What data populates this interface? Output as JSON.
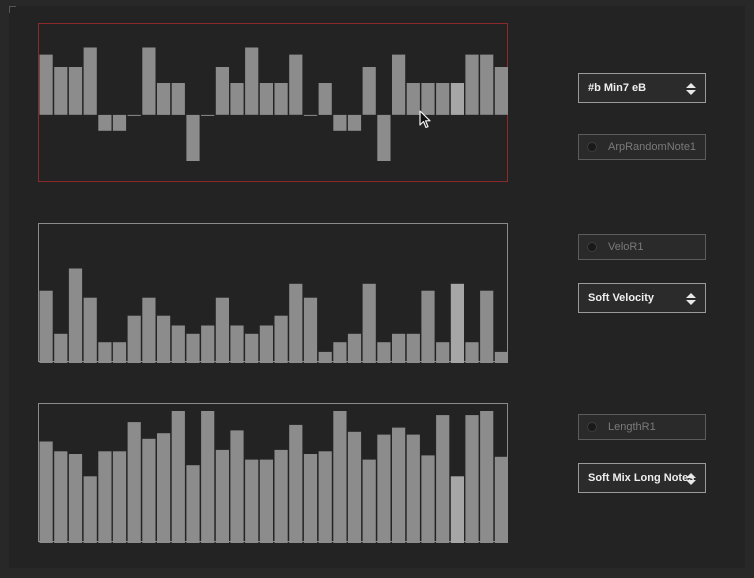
{
  "colors": {
    "background": "#282828",
    "panel": "#232323",
    "bar": "#8c8c8c",
    "bar_highlight": "#a6a6a6",
    "selected_border": "#8b2a2a",
    "border": "#8a8a8a"
  },
  "pitch_graph": {
    "range": [
      -3,
      4
    ],
    "highlight_index": 28,
    "values": [
      3.4,
      2.7,
      2.7,
      3.8,
      -0.9,
      -0.9,
      0,
      3.8,
      1.8,
      1.8,
      -2.6,
      0,
      2.7,
      1.8,
      3.8,
      1.8,
      1.8,
      3.4,
      0,
      1.8,
      -0.9,
      -0.9,
      2.7,
      -2.6,
      3.4,
      1.8,
      1.8,
      1.8,
      1.8,
      3.4,
      3.4,
      2.7
    ]
  },
  "velocity_graph": {
    "max": 1,
    "highlight_index": 28,
    "values": [
      0.52,
      0.21,
      0.68,
      0.47,
      0.15,
      0.15,
      0.34,
      0.47,
      0.34,
      0.27,
      0.21,
      0.27,
      0.47,
      0.27,
      0.21,
      0.27,
      0.34,
      0.57,
      0.47,
      0.08,
      0.15,
      0.21,
      0.57,
      0.15,
      0.21,
      0.21,
      0.52,
      0.15,
      0.57,
      0.15,
      0.52,
      0.08
    ]
  },
  "length_graph": {
    "max": 1,
    "highlight_index": 28,
    "values": [
      0.73,
      0.66,
      0.64,
      0.48,
      0.66,
      0.66,
      0.87,
      0.75,
      0.79,
      0.95,
      0.56,
      0.95,
      0.67,
      0.81,
      0.6,
      0.6,
      0.67,
      0.85,
      0.64,
      0.66,
      0.95,
      0.8,
      0.6,
      0.78,
      0.83,
      0.78,
      0.63,
      0.92,
      0.48,
      0.92,
      0.95,
      0.62
    ]
  },
  "controls": {
    "scale_menu": {
      "value": "#b Min7 eB",
      "icon": "updown-arrows-icon"
    },
    "arp_toggle": {
      "label": "ArpRandomNote1"
    },
    "velo_toggle": {
      "label": "VeloR1"
    },
    "velocity_menu": {
      "value": "Soft Velocity",
      "icon": "updown-arrows-icon"
    },
    "length_toggle": {
      "label": "LengthR1"
    },
    "length_menu": {
      "value": "Soft Mix Long Notes",
      "icon": "updown-arrows-icon"
    }
  }
}
